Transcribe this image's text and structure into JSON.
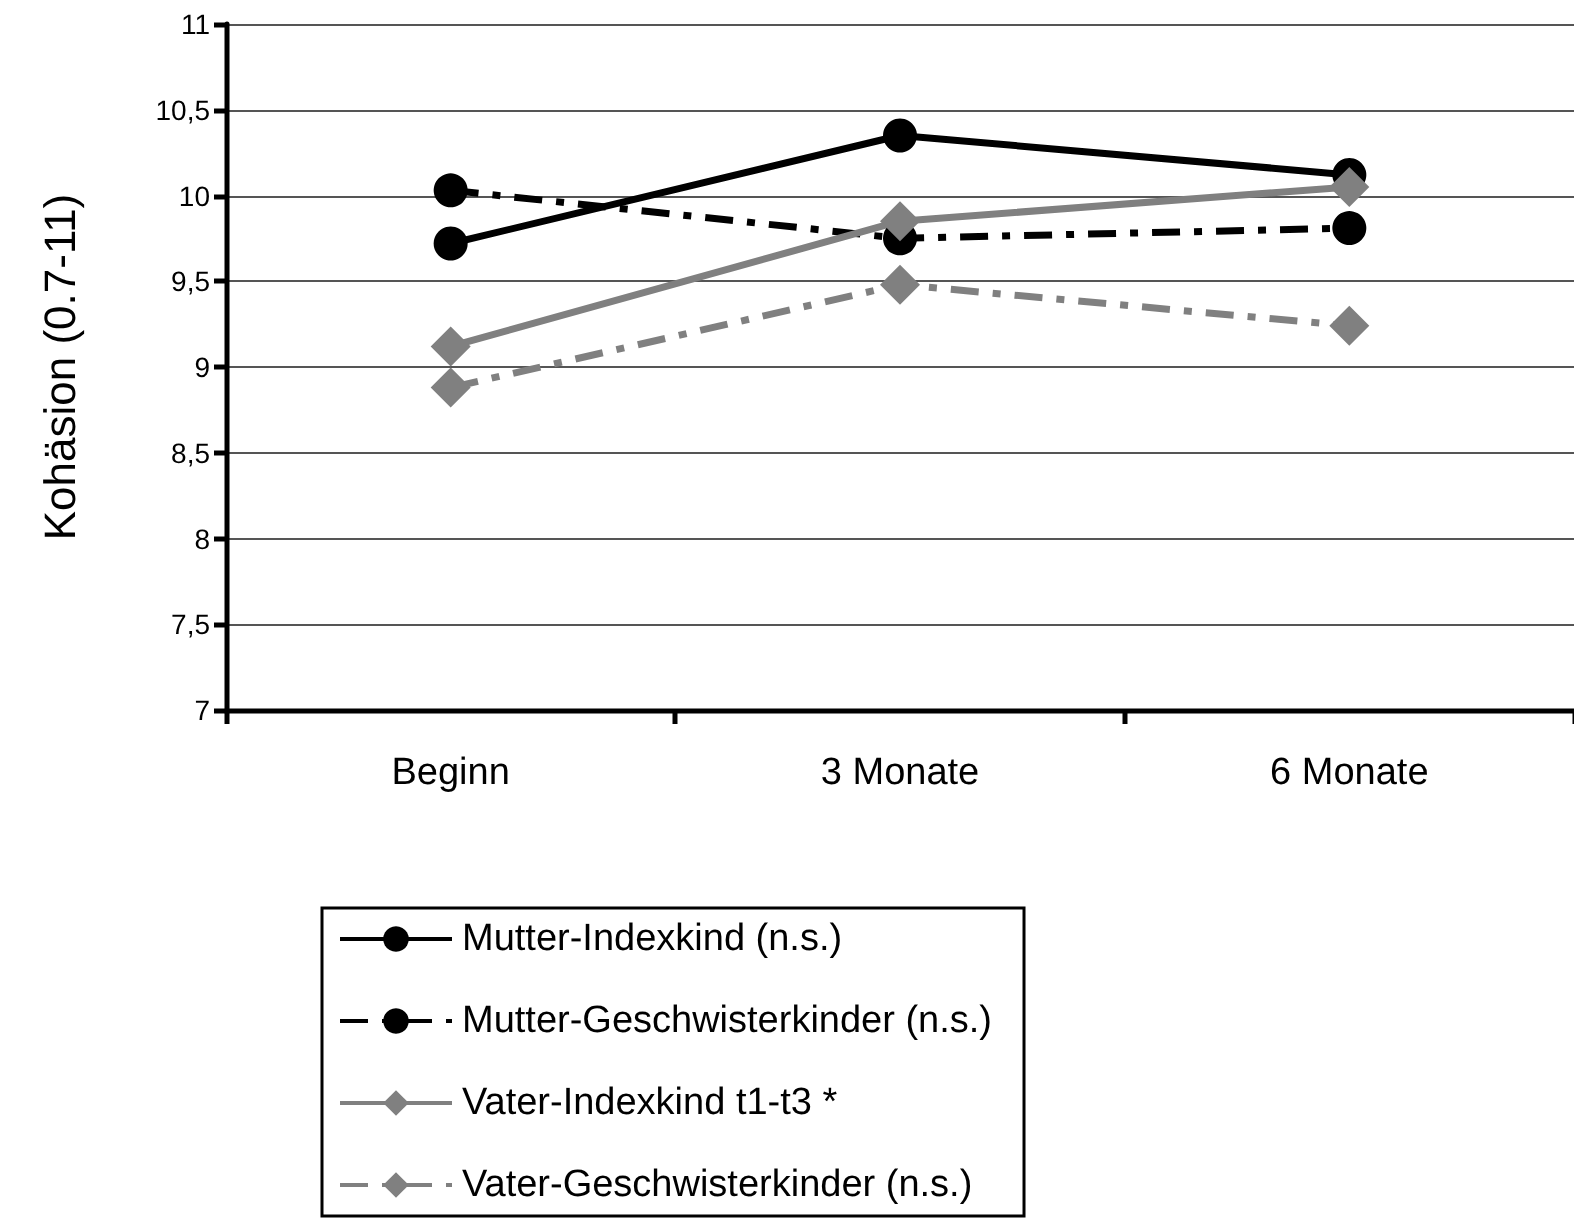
{
  "chart_data": {
    "type": "line",
    "ylabel": "Kohäsion (0.7-11)",
    "categories": [
      "Beginn",
      "3 Monate",
      "6 Monate"
    ],
    "series": [
      {
        "name": "Mutter-Indexkind (n.s.)",
        "color": "#000000",
        "marker": "circle",
        "line_style": "solid",
        "values": [
          9.72,
          10.35,
          10.12
        ]
      },
      {
        "name": "Mutter-Geschwisterkinder (n.s.)",
        "color": "#000000",
        "marker": "circle",
        "line_style": "dashed",
        "values": [
          10.03,
          9.75,
          9.81
        ]
      },
      {
        "name": "Vater-Indexkind t1-t3 *",
        "color": "#808080",
        "marker": "diamond",
        "line_style": "solid",
        "values": [
          9.12,
          9.85,
          10.05
        ]
      },
      {
        "name": "Vater-Geschwisterkinder (n.s.)",
        "color": "#808080",
        "marker": "diamond",
        "line_style": "dashed",
        "values": [
          8.88,
          9.48,
          9.24
        ]
      }
    ],
    "ylim": [
      7,
      11
    ],
    "yticks": [
      7,
      {
        "value": 7.5,
        "label": "7,5"
      },
      8,
      {
        "value": 8.5,
        "label": "8,5"
      },
      9,
      {
        "value": 9.5,
        "label": "9,5"
      },
      10,
      {
        "value": 10.5,
        "label": "10,5"
      },
      11
    ],
    "grid": "y",
    "legend": "bottom"
  }
}
